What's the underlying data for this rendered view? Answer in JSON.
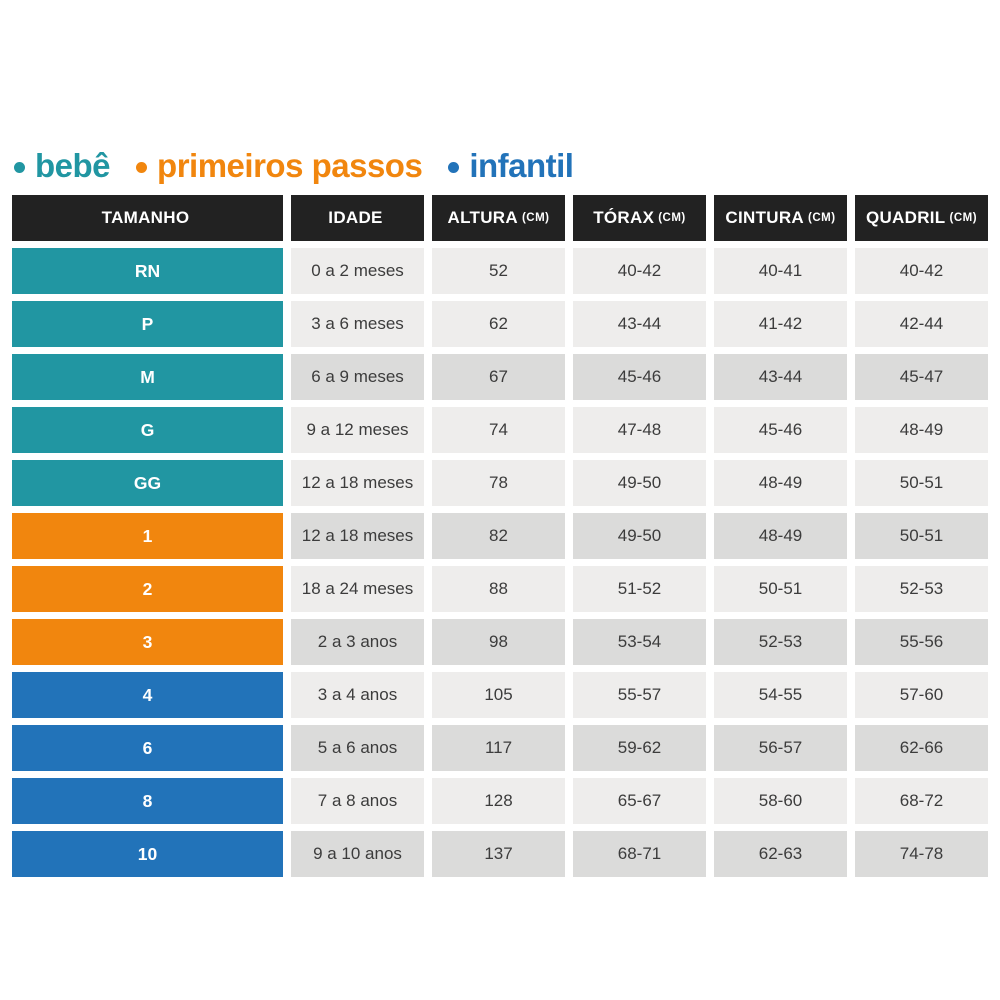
{
  "legend": {
    "items": [
      {
        "label": "bebê",
        "color": "#2196a2"
      },
      {
        "label": "primeiros passos",
        "color": "#f1860e"
      },
      {
        "label": "infantil",
        "color": "#2273b9"
      }
    ]
  },
  "table": {
    "headers": [
      {
        "label": "TAMANHO",
        "unit": ""
      },
      {
        "label": "IDADE",
        "unit": ""
      },
      {
        "label": "ALTURA",
        "unit": "(CM)"
      },
      {
        "label": "TÓRAX",
        "unit": "(CM)"
      },
      {
        "label": "CINTURA",
        "unit": "(CM)"
      },
      {
        "label": "QUADRIL",
        "unit": "(CM)"
      }
    ],
    "rows": [
      {
        "size": "RN",
        "group": "bebe",
        "age": "0 a 2 meses",
        "height": "52",
        "chest": "40-42",
        "waist": "40-41",
        "hip": "40-42",
        "shade": "light"
      },
      {
        "size": "P",
        "group": "bebe",
        "age": "3 a 6 meses",
        "height": "62",
        "chest": "43-44",
        "waist": "41-42",
        "hip": "42-44",
        "shade": "light"
      },
      {
        "size": "M",
        "group": "bebe",
        "age": "6 a 9 meses",
        "height": "67",
        "chest": "45-46",
        "waist": "43-44",
        "hip": "45-47",
        "shade": "dark"
      },
      {
        "size": "G",
        "group": "bebe",
        "age": "9 a 12 meses",
        "height": "74",
        "chest": "47-48",
        "waist": "45-46",
        "hip": "48-49",
        "shade": "light"
      },
      {
        "size": "GG",
        "group": "bebe",
        "age": "12 a 18 meses",
        "height": "78",
        "chest": "49-50",
        "waist": "48-49",
        "hip": "50-51",
        "shade": "light"
      },
      {
        "size": "1",
        "group": "primeiros_passos",
        "age": "12 a 18 meses",
        "height": "82",
        "chest": "49-50",
        "waist": "48-49",
        "hip": "50-51",
        "shade": "dark"
      },
      {
        "size": "2",
        "group": "primeiros_passos",
        "age": "18 a 24 meses",
        "height": "88",
        "chest": "51-52",
        "waist": "50-51",
        "hip": "52-53",
        "shade": "light"
      },
      {
        "size": "3",
        "group": "primeiros_passos",
        "age": "2 a 3 anos",
        "height": "98",
        "chest": "53-54",
        "waist": "52-53",
        "hip": "55-56",
        "shade": "dark"
      },
      {
        "size": "4",
        "group": "infantil",
        "age": "3 a 4 anos",
        "height": "105",
        "chest": "55-57",
        "waist": "54-55",
        "hip": "57-60",
        "shade": "light"
      },
      {
        "size": "6",
        "group": "infantil",
        "age": "5 a 6 anos",
        "height": "117",
        "chest": "59-62",
        "waist": "56-57",
        "hip": "62-66",
        "shade": "dark"
      },
      {
        "size": "8",
        "group": "infantil",
        "age": "7 a 8 anos",
        "height": "128",
        "chest": "65-67",
        "waist": "58-60",
        "hip": "68-72",
        "shade": "light"
      },
      {
        "size": "10",
        "group": "infantil",
        "age": "9 a 10 anos",
        "height": "137",
        "chest": "68-71",
        "waist": "62-63",
        "hip": "74-78",
        "shade": "dark"
      }
    ]
  },
  "colors": {
    "header_bg": "#222222",
    "header_text": "#ffffff",
    "row_light": "#eeedec",
    "row_dark": "#dbdbda",
    "cell_text": "#3c3c3c",
    "group_bebe": "#2196a2",
    "group_primeiros_passos": "#f1860e",
    "group_infantil": "#2273b9",
    "background": "#ffffff"
  },
  "chart_data": {
    "type": "table",
    "title": "",
    "legend": [
      "bebê",
      "primeiros passos",
      "infantil"
    ],
    "columns": [
      "TAMANHO",
      "IDADE",
      "ALTURA (CM)",
      "TÓRAX (CM)",
      "CINTURA (CM)",
      "QUADRIL (CM)"
    ],
    "rows": [
      [
        "RN",
        "0 a 2 meses",
        "52",
        "40-42",
        "40-41",
        "40-42"
      ],
      [
        "P",
        "3 a 6 meses",
        "62",
        "43-44",
        "41-42",
        "42-44"
      ],
      [
        "M",
        "6 a 9 meses",
        "67",
        "45-46",
        "43-44",
        "45-47"
      ],
      [
        "G",
        "9 a 12 meses",
        "74",
        "47-48",
        "45-46",
        "48-49"
      ],
      [
        "GG",
        "12 a 18 meses",
        "78",
        "49-50",
        "48-49",
        "50-51"
      ],
      [
        "1",
        "12 a 18 meses",
        "82",
        "49-50",
        "48-49",
        "50-51"
      ],
      [
        "2",
        "18 a 24 meses",
        "88",
        "51-52",
        "50-51",
        "52-53"
      ],
      [
        "3",
        "2 a 3 anos",
        "98",
        "53-54",
        "52-53",
        "55-56"
      ],
      [
        "4",
        "3 a 4 anos",
        "105",
        "55-57",
        "54-55",
        "57-60"
      ],
      [
        "6",
        "5 a 6 anos",
        "117",
        "59-62",
        "56-57",
        "62-66"
      ],
      [
        "8",
        "7 a 8 anos",
        "128",
        "65-67",
        "58-60",
        "68-72"
      ],
      [
        "10",
        "9 a 10 anos",
        "137",
        "68-71",
        "62-63",
        "74-78"
      ]
    ],
    "row_groups": [
      "bebê",
      "bebê",
      "bebê",
      "bebê",
      "bebê",
      "primeiros passos",
      "primeiros passos",
      "primeiros passos",
      "infantil",
      "infantil",
      "infantil",
      "infantil"
    ]
  }
}
